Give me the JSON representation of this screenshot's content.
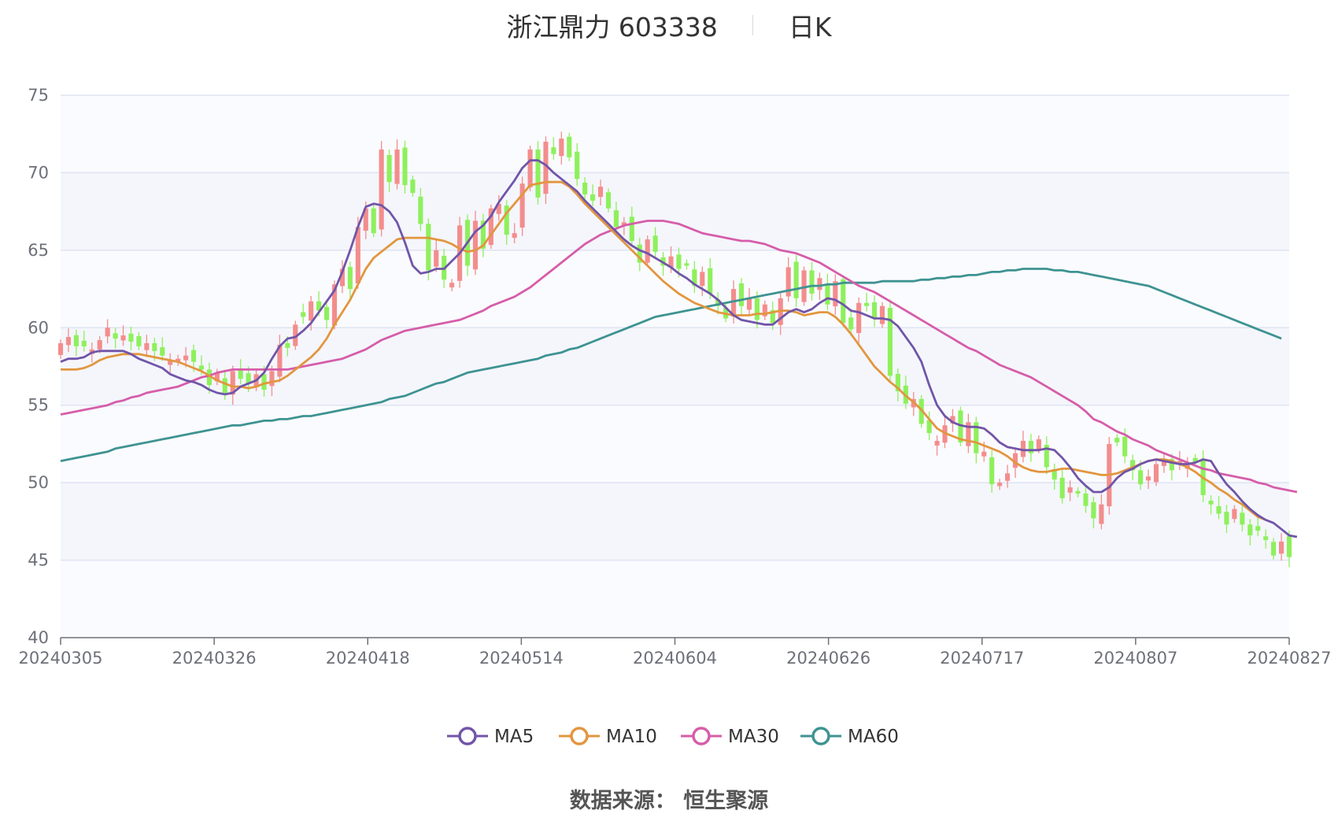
{
  "title": {
    "main": "浙江鼎力 603338",
    "period": "日K"
  },
  "source": {
    "label": "数据来源：",
    "value": "恒生聚源"
  },
  "colors": {
    "up": "#f38d8d",
    "down": "#8ef05c",
    "grid": "#dfe4f2",
    "band": "#f4f6fc",
    "axis": "#6e7079",
    "MA5": "#7155a8",
    "MA10": "#e2963f",
    "MA30": "#d65da9",
    "MA60": "#3e9392"
  },
  "chart_data": {
    "type": "candlestick",
    "title": "浙江鼎力 603338 日K",
    "ylim": [
      40,
      75
    ],
    "yticks": [
      40,
      45,
      50,
      55,
      60,
      65,
      70,
      75
    ],
    "x_tick_labels": [
      "20240305",
      "20240326",
      "20240418",
      "20240514",
      "20240604",
      "20240626",
      "20240717",
      "20240807",
      "20240827"
    ],
    "grid": true,
    "legend_position": "bottom",
    "legend": [
      "MA5",
      "MA10",
      "MA30",
      "MA60"
    ],
    "close": [
      59.0,
      59.4,
      58.8,
      58.8,
      58.6,
      59.2,
      60.0,
      59.3,
      59.5,
      59.1,
      58.8,
      59.0,
      58.5,
      58.2,
      57.9,
      58.0,
      58.2,
      57.8,
      57.3,
      56.3,
      57.1,
      55.8,
      57.2,
      56.7,
      56.4,
      57.0,
      56.0,
      57.2,
      58.9,
      58.7,
      60.2,
      60.7,
      61.7,
      61.1,
      60.5,
      62.8,
      63.8,
      62.5,
      66.5,
      67.7,
      66.1,
      71.5,
      69.4,
      71.5,
      69.2,
      68.7,
      66.7,
      63.7,
      65.0,
      63.1,
      62.9,
      66.6,
      64.0,
      66.9,
      65.1,
      67.7,
      68.0,
      66.0,
      66.1,
      69.3,
      71.5,
      68.4,
      72.0,
      71.2,
      72.2,
      71.0,
      69.6,
      68.6,
      68.2,
      69.1,
      67.7,
      66.5,
      66.8,
      65.6,
      64.2,
      65.7,
      64.9,
      64.0,
      64.6,
      63.8,
      64.0,
      62.7,
      63.6,
      62.2,
      61.4,
      60.6,
      62.5,
      61.4,
      61.9,
      60.5,
      61.5,
      60.3,
      61.9,
      63.9,
      61.9,
      63.7,
      62.2,
      63.2,
      61.5,
      63.0,
      60.3,
      59.9,
      61.6,
      61.4,
      60.6,
      61.4,
      56.9,
      55.9,
      55.1,
      55.4,
      53.8,
      53.2,
      52.7,
      53.7,
      54.3,
      52.6,
      53.9,
      51.9,
      52.0,
      49.9,
      50.0,
      50.6,
      51.9,
      52.7,
      51.9,
      52.8,
      51.0,
      50.2,
      49.0,
      49.7,
      49.3,
      48.5,
      47.7,
      48.6,
      52.5,
      52.6,
      51.7,
      50.8,
      49.9,
      50.4,
      51.2,
      51.4,
      50.8,
      51.4,
      51.2,
      51.3,
      49.2,
      48.6,
      48.0,
      47.3,
      48.3,
      47.3,
      46.6,
      46.9,
      46.3,
      45.3,
      46.2,
      45.2
    ],
    "MA5": [
      57.8,
      58.0,
      58.0,
      58.1,
      58.4,
      58.5,
      58.5,
      58.5,
      58.5,
      58.3,
      58.0,
      57.8,
      57.6,
      57.4,
      57.0,
      56.8,
      56.6,
      56.5,
      56.3,
      56.0,
      55.8,
      55.7,
      55.8,
      56.2,
      56.4,
      56.6,
      57.1,
      58.0,
      58.8,
      59.3,
      59.4,
      59.8,
      60.3,
      61.0,
      61.7,
      62.4,
      63.6,
      65.0,
      66.5,
      67.8,
      68.0,
      67.9,
      67.5,
      66.8,
      65.5,
      64.0,
      63.5,
      63.6,
      63.8,
      63.8,
      64.3,
      64.8,
      65.5,
      66.2,
      66.6,
      67.2,
      68.1,
      68.8,
      69.5,
      70.3,
      70.8,
      70.8,
      70.5,
      70.0,
      69.6,
      69.2,
      68.8,
      68.2,
      67.7,
      67.2,
      66.7,
      66.2,
      65.7,
      65.3,
      65.0,
      64.8,
      64.5,
      64.2,
      63.9,
      63.5,
      63.2,
      62.8,
      62.5,
      62.2,
      61.8,
      61.3,
      60.8,
      60.5,
      60.4,
      60.3,
      60.2,
      60.2,
      60.6,
      61.0,
      61.2,
      61.0,
      61.2,
      61.6,
      61.9,
      61.8,
      61.5,
      61.1,
      61.0,
      60.8,
      60.6,
      60.6,
      60.5,
      60.1,
      59.4,
      58.7,
      57.8,
      56.3,
      55.0,
      54.3,
      53.9,
      53.7,
      53.6,
      53.6,
      53.5,
      53.1,
      52.6,
      52.3,
      52.2,
      52.1,
      52.1,
      52.1,
      52.2,
      52.1,
      51.6,
      51.0,
      50.3,
      49.8,
      49.4,
      49.4,
      49.7,
      50.3,
      50.7,
      50.9,
      51.2,
      51.4,
      51.5,
      51.4,
      51.3,
      51.2,
      51.2,
      51.3,
      51.5,
      51.4,
      50.6,
      49.9,
      49.4,
      48.8,
      48.3,
      47.9,
      47.6,
      47.4,
      47.0,
      46.6,
      46.5
    ],
    "MA10": [
      57.3,
      57.3,
      57.3,
      57.4,
      57.6,
      57.9,
      58.1,
      58.2,
      58.3,
      58.3,
      58.3,
      58.2,
      58.1,
      58.0,
      57.9,
      57.8,
      57.6,
      57.4,
      57.2,
      56.9,
      56.6,
      56.4,
      56.2,
      56.2,
      56.1,
      56.2,
      56.4,
      56.5,
      56.6,
      56.9,
      57.3,
      57.7,
      58.1,
      58.6,
      59.3,
      60.2,
      61.0,
      61.8,
      62.8,
      63.8,
      64.5,
      64.9,
      65.3,
      65.7,
      65.8,
      65.8,
      65.8,
      65.8,
      65.7,
      65.6,
      65.4,
      65.1,
      64.9,
      65.0,
      65.3,
      66.0,
      66.7,
      67.4,
      68.0,
      68.6,
      69.2,
      69.3,
      69.4,
      69.4,
      69.4,
      69.1,
      68.6,
      68.0,
      67.5,
      67.0,
      66.5,
      66.0,
      65.5,
      65.0,
      64.5,
      64.0,
      63.5,
      63.0,
      62.6,
      62.2,
      61.9,
      61.6,
      61.4,
      61.2,
      61.0,
      60.9,
      60.8,
      60.8,
      60.8,
      60.9,
      60.9,
      61.0,
      61.1,
      61.1,
      61.0,
      60.8,
      60.9,
      61.0,
      61.0,
      60.7,
      60.2,
      59.6,
      58.9,
      58.2,
      57.5,
      57.0,
      56.5,
      56.1,
      55.6,
      55.2,
      54.7,
      54.1,
      53.5,
      53.2,
      53.0,
      52.8,
      52.7,
      52.6,
      52.4,
      52.2,
      52.0,
      51.7,
      51.3,
      51.0,
      50.8,
      50.7,
      50.7,
      50.8,
      50.9,
      50.9,
      50.8,
      50.7,
      50.6,
      50.5,
      50.5,
      50.6,
      50.8,
      51.0,
      51.2,
      51.4,
      51.5,
      51.5,
      51.4,
      51.2,
      51.0,
      50.7,
      50.3,
      50.0,
      49.6,
      49.3,
      48.9,
      48.6,
      48.2,
      47.8,
      47.6
    ],
    "MA30": [
      54.4,
      54.5,
      54.6,
      54.7,
      54.8,
      54.9,
      55.0,
      55.2,
      55.3,
      55.5,
      55.6,
      55.8,
      55.9,
      56.0,
      56.1,
      56.2,
      56.4,
      56.6,
      56.8,
      56.9,
      57.1,
      57.2,
      57.3,
      57.3,
      57.3,
      57.3,
      57.3,
      57.3,
      57.3,
      57.3,
      57.4,
      57.5,
      57.6,
      57.7,
      57.8,
      57.9,
      58.0,
      58.2,
      58.4,
      58.6,
      58.9,
      59.2,
      59.4,
      59.6,
      59.8,
      59.9,
      60.0,
      60.1,
      60.2,
      60.3,
      60.4,
      60.5,
      60.7,
      60.9,
      61.1,
      61.4,
      61.6,
      61.8,
      62.0,
      62.3,
      62.6,
      63.0,
      63.4,
      63.8,
      64.2,
      64.6,
      65.0,
      65.4,
      65.7,
      66.0,
      66.2,
      66.4,
      66.6,
      66.7,
      66.8,
      66.9,
      66.9,
      66.9,
      66.8,
      66.7,
      66.5,
      66.3,
      66.1,
      66.0,
      65.9,
      65.8,
      65.7,
      65.6,
      65.6,
      65.5,
      65.4,
      65.2,
      65.0,
      64.9,
      64.8,
      64.6,
      64.4,
      64.2,
      63.9,
      63.6,
      63.3,
      63.0,
      62.7,
      62.5,
      62.3,
      62.0,
      61.7,
      61.4,
      61.1,
      60.8,
      60.5,
      60.2,
      59.9,
      59.6,
      59.3,
      59.0,
      58.7,
      58.5,
      58.2,
      57.9,
      57.6,
      57.4,
      57.2,
      57.0,
      56.8,
      56.5,
      56.2,
      55.9,
      55.6,
      55.3,
      55.0,
      54.6,
      54.1,
      53.9,
      53.6,
      53.3,
      53.1,
      52.8,
      52.6,
      52.4,
      52.1,
      51.9,
      51.7,
      51.5,
      51.3,
      51.1,
      50.9,
      50.8,
      50.6,
      50.5,
      50.4,
      50.3,
      50.2,
      50.0,
      49.9,
      49.7,
      49.6,
      49.5,
      49.4
    ],
    "MA60": [
      51.4,
      51.5,
      51.6,
      51.7,
      51.8,
      51.9,
      52.0,
      52.2,
      52.3,
      52.4,
      52.5,
      52.6,
      52.7,
      52.8,
      52.9,
      53.0,
      53.1,
      53.2,
      53.3,
      53.4,
      53.5,
      53.6,
      53.7,
      53.7,
      53.8,
      53.9,
      54.0,
      54.0,
      54.1,
      54.1,
      54.2,
      54.3,
      54.3,
      54.4,
      54.5,
      54.6,
      54.7,
      54.8,
      54.9,
      55.0,
      55.1,
      55.2,
      55.4,
      55.5,
      55.6,
      55.8,
      56.0,
      56.2,
      56.4,
      56.5,
      56.7,
      56.9,
      57.1,
      57.2,
      57.3,
      57.4,
      57.5,
      57.6,
      57.7,
      57.8,
      57.9,
      58.0,
      58.2,
      58.3,
      58.4,
      58.6,
      58.7,
      58.9,
      59.1,
      59.3,
      59.5,
      59.7,
      59.9,
      60.1,
      60.3,
      60.5,
      60.7,
      60.8,
      60.9,
      61.0,
      61.1,
      61.2,
      61.3,
      61.4,
      61.5,
      61.6,
      61.7,
      61.8,
      61.9,
      62.0,
      62.1,
      62.2,
      62.3,
      62.4,
      62.5,
      62.6,
      62.7,
      62.7,
      62.8,
      62.8,
      62.9,
      62.9,
      62.9,
      62.9,
      62.9,
      63.0,
      63.0,
      63.0,
      63.0,
      63.0,
      63.1,
      63.1,
      63.2,
      63.2,
      63.3,
      63.3,
      63.4,
      63.4,
      63.5,
      63.6,
      63.6,
      63.7,
      63.7,
      63.8,
      63.8,
      63.8,
      63.8,
      63.7,
      63.7,
      63.6,
      63.6,
      63.5,
      63.4,
      63.3,
      63.2,
      63.1,
      63.0,
      62.9,
      62.8,
      62.7,
      62.5,
      62.3,
      62.1,
      61.9,
      61.7,
      61.5,
      61.3,
      61.1,
      60.9,
      60.7,
      60.5,
      60.3,
      60.1,
      59.9,
      59.7,
      59.5,
      59.3
    ]
  }
}
